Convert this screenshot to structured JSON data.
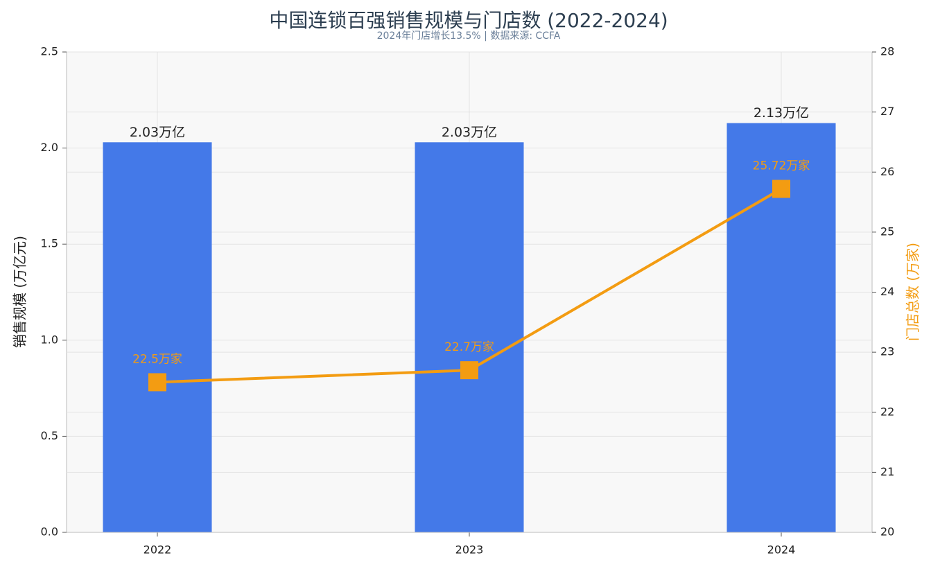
{
  "chart_data": {
    "type": "bar-line",
    "title": "中国连锁百强销售规模与门店数 (2022-2024)",
    "subtitle": "2024年门店增长13.5% | 数据来源: CCFA",
    "ylabel": "销售规模 (万亿元)",
    "y2label": "门店总数 (万家)",
    "categories": [
      "2022",
      "2023",
      "2024"
    ],
    "series": [
      {
        "type": "bar",
        "color": "#4479e8",
        "values": [
          2.03,
          2.03,
          2.13
        ],
        "value_labels": [
          "2.03万亿",
          "2.03万亿",
          "2.13万亿"
        ]
      },
      {
        "type": "line",
        "axis": "y2",
        "color": "#f39c12",
        "values": [
          22.5,
          22.7,
          25.72
        ],
        "value_labels": [
          "22.5万家",
          "22.7万家",
          "25.72万家"
        ]
      }
    ],
    "ylim": [
      0,
      2.5
    ],
    "yticks": [
      {
        "value": 0,
        "label": "0.0"
      },
      0.5,
      {
        "value": 1,
        "label": "1.0"
      },
      1.5,
      {
        "value": 2,
        "label": "2.0"
      },
      2.5
    ],
    "y2lim": [
      20,
      28
    ],
    "y2ticks": [
      20,
      21,
      22,
      23,
      24,
      25,
      26,
      27,
      28
    ],
    "grid": true
  }
}
